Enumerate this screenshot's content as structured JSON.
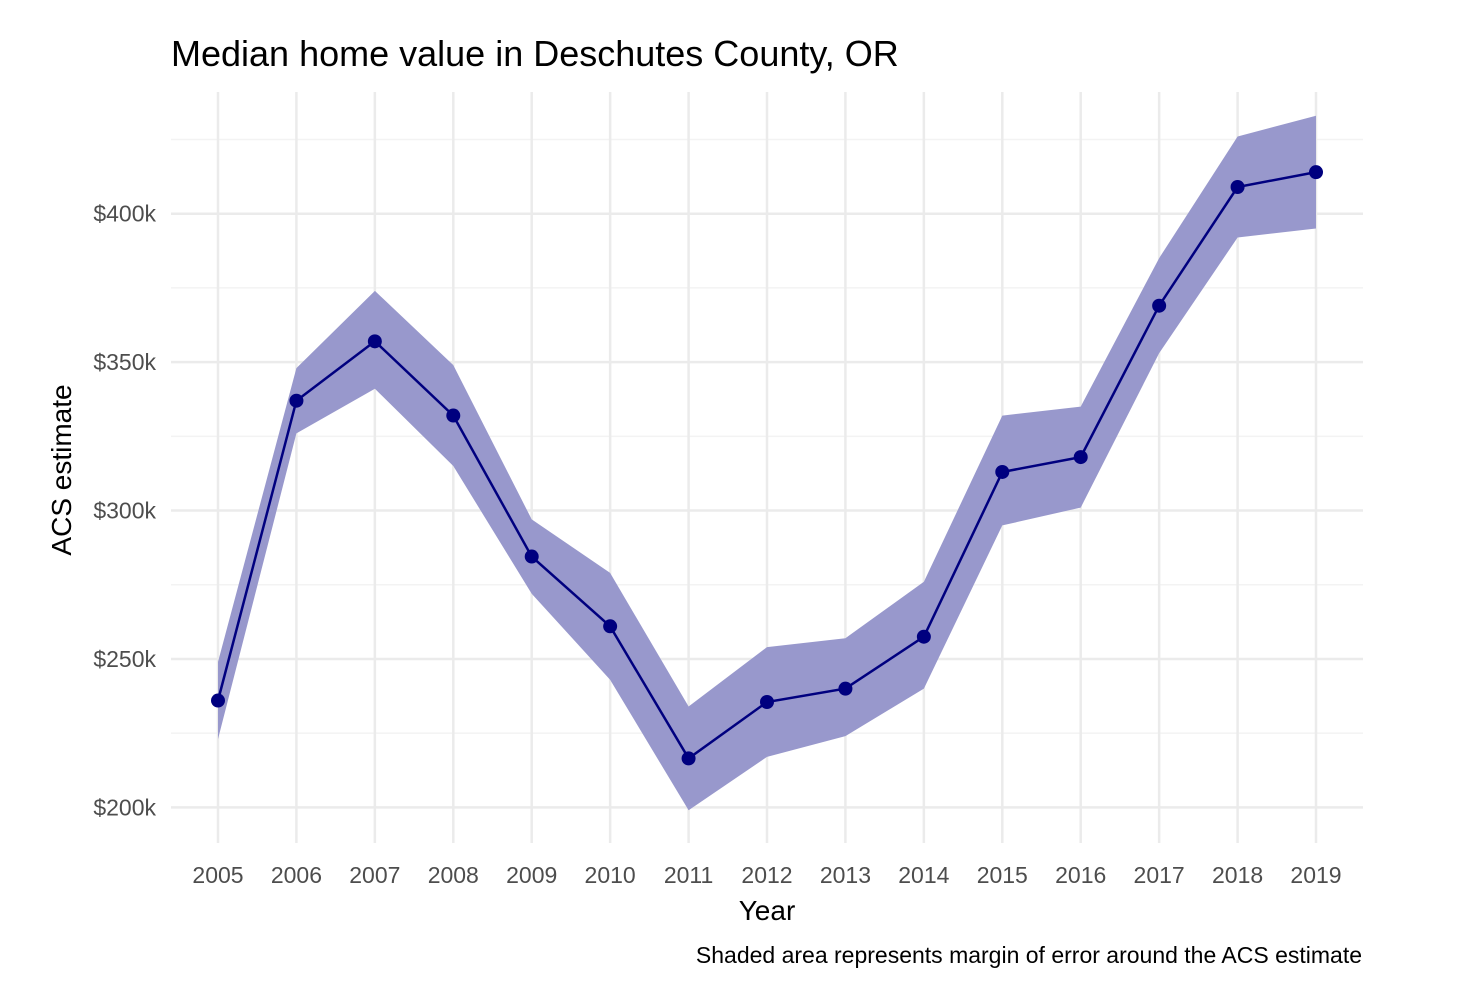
{
  "chart_data": {
    "type": "line",
    "title": "Median home value in Deschutes County, OR",
    "xlabel": "Year",
    "ylabel": "ACS estimate",
    "caption": "Shaded area represents margin of error around the ACS estimate",
    "x": [
      2005,
      2006,
      2007,
      2008,
      2009,
      2010,
      2011,
      2012,
      2013,
      2014,
      2015,
      2016,
      2017,
      2018,
      2019
    ],
    "x_tick_labels": [
      "2005",
      "2006",
      "2007",
      "2008",
      "2009",
      "2010",
      "2011",
      "2012",
      "2013",
      "2014",
      "2015",
      "2016",
      "2017",
      "2018",
      "2019"
    ],
    "series": [
      {
        "values": [
          236000,
          337000,
          357000,
          332000,
          284500,
          261000,
          216500,
          235500,
          240000,
          257500,
          313000,
          318000,
          369000,
          409000,
          414000
        ],
        "lower": [
          223000,
          326000,
          341000,
          315000,
          272000,
          243000,
          199000,
          217000,
          224000,
          240000,
          295000,
          301000,
          353000,
          392000,
          395000
        ],
        "upper": [
          249000,
          348000,
          374000,
          349000,
          297000,
          279000,
          234000,
          254000,
          257000,
          276000,
          332000,
          335000,
          385000,
          426000,
          433000
        ]
      }
    ],
    "ylim": [
      188000,
      441000
    ],
    "y_ticks": [
      200000,
      250000,
      300000,
      350000,
      400000
    ],
    "y_tick_labels": [
      "$200k",
      "$250k",
      "$300k",
      "$350k",
      "$400k"
    ],
    "grid": true,
    "colors": {
      "line": "#00007f",
      "ribbon": "#9898cc",
      "grid_major": "#ebebeb",
      "grid_minor": "#f3f3f3"
    }
  }
}
